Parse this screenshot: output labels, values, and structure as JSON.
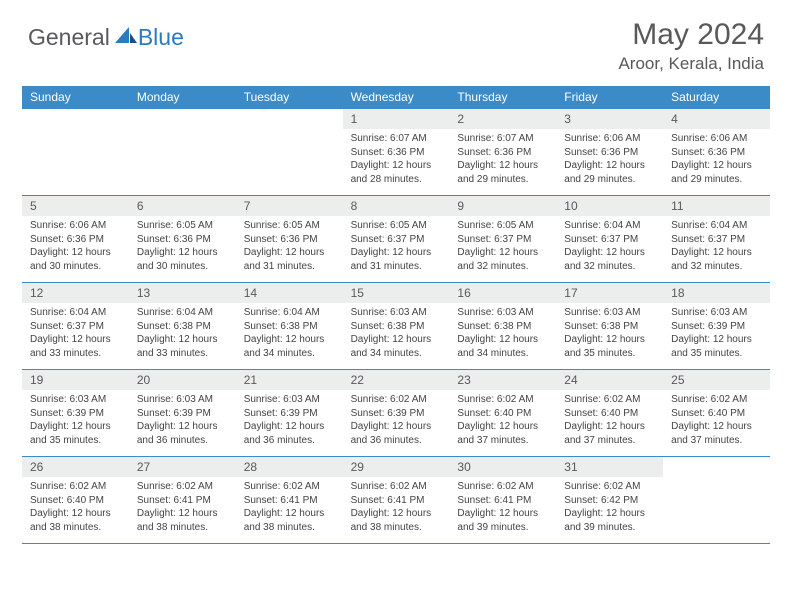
{
  "logo": {
    "general": "General",
    "blue": "Blue"
  },
  "title": "May 2024",
  "location": "Aroor, Kerala, India",
  "colors": {
    "headerBlue": "#3b8bc9",
    "logoBlue": "#2b7bbf",
    "gray": "#58595b",
    "cellGray": "#eceded"
  },
  "daysOfWeek": [
    "Sunday",
    "Monday",
    "Tuesday",
    "Wednesday",
    "Thursday",
    "Friday",
    "Saturday"
  ],
  "weeks": [
    [
      {
        "n": "",
        "sr": "",
        "ss": "",
        "dl": ""
      },
      {
        "n": "",
        "sr": "",
        "ss": "",
        "dl": ""
      },
      {
        "n": "",
        "sr": "",
        "ss": "",
        "dl": ""
      },
      {
        "n": "1",
        "sr": "6:07 AM",
        "ss": "6:36 PM",
        "dl": "12 hours and 28 minutes."
      },
      {
        "n": "2",
        "sr": "6:07 AM",
        "ss": "6:36 PM",
        "dl": "12 hours and 29 minutes."
      },
      {
        "n": "3",
        "sr": "6:06 AM",
        "ss": "6:36 PM",
        "dl": "12 hours and 29 minutes."
      },
      {
        "n": "4",
        "sr": "6:06 AM",
        "ss": "6:36 PM",
        "dl": "12 hours and 29 minutes."
      }
    ],
    [
      {
        "n": "5",
        "sr": "6:06 AM",
        "ss": "6:36 PM",
        "dl": "12 hours and 30 minutes."
      },
      {
        "n": "6",
        "sr": "6:05 AM",
        "ss": "6:36 PM",
        "dl": "12 hours and 30 minutes."
      },
      {
        "n": "7",
        "sr": "6:05 AM",
        "ss": "6:36 PM",
        "dl": "12 hours and 31 minutes."
      },
      {
        "n": "8",
        "sr": "6:05 AM",
        "ss": "6:37 PM",
        "dl": "12 hours and 31 minutes."
      },
      {
        "n": "9",
        "sr": "6:05 AM",
        "ss": "6:37 PM",
        "dl": "12 hours and 32 minutes."
      },
      {
        "n": "10",
        "sr": "6:04 AM",
        "ss": "6:37 PM",
        "dl": "12 hours and 32 minutes."
      },
      {
        "n": "11",
        "sr": "6:04 AM",
        "ss": "6:37 PM",
        "dl": "12 hours and 32 minutes."
      }
    ],
    [
      {
        "n": "12",
        "sr": "6:04 AM",
        "ss": "6:37 PM",
        "dl": "12 hours and 33 minutes."
      },
      {
        "n": "13",
        "sr": "6:04 AM",
        "ss": "6:38 PM",
        "dl": "12 hours and 33 minutes."
      },
      {
        "n": "14",
        "sr": "6:04 AM",
        "ss": "6:38 PM",
        "dl": "12 hours and 34 minutes."
      },
      {
        "n": "15",
        "sr": "6:03 AM",
        "ss": "6:38 PM",
        "dl": "12 hours and 34 minutes."
      },
      {
        "n": "16",
        "sr": "6:03 AM",
        "ss": "6:38 PM",
        "dl": "12 hours and 34 minutes."
      },
      {
        "n": "17",
        "sr": "6:03 AM",
        "ss": "6:38 PM",
        "dl": "12 hours and 35 minutes."
      },
      {
        "n": "18",
        "sr": "6:03 AM",
        "ss": "6:39 PM",
        "dl": "12 hours and 35 minutes."
      }
    ],
    [
      {
        "n": "19",
        "sr": "6:03 AM",
        "ss": "6:39 PM",
        "dl": "12 hours and 35 minutes."
      },
      {
        "n": "20",
        "sr": "6:03 AM",
        "ss": "6:39 PM",
        "dl": "12 hours and 36 minutes."
      },
      {
        "n": "21",
        "sr": "6:03 AM",
        "ss": "6:39 PM",
        "dl": "12 hours and 36 minutes."
      },
      {
        "n": "22",
        "sr": "6:02 AM",
        "ss": "6:39 PM",
        "dl": "12 hours and 36 minutes."
      },
      {
        "n": "23",
        "sr": "6:02 AM",
        "ss": "6:40 PM",
        "dl": "12 hours and 37 minutes."
      },
      {
        "n": "24",
        "sr": "6:02 AM",
        "ss": "6:40 PM",
        "dl": "12 hours and 37 minutes."
      },
      {
        "n": "25",
        "sr": "6:02 AM",
        "ss": "6:40 PM",
        "dl": "12 hours and 37 minutes."
      }
    ],
    [
      {
        "n": "26",
        "sr": "6:02 AM",
        "ss": "6:40 PM",
        "dl": "12 hours and 38 minutes."
      },
      {
        "n": "27",
        "sr": "6:02 AM",
        "ss": "6:41 PM",
        "dl": "12 hours and 38 minutes."
      },
      {
        "n": "28",
        "sr": "6:02 AM",
        "ss": "6:41 PM",
        "dl": "12 hours and 38 minutes."
      },
      {
        "n": "29",
        "sr": "6:02 AM",
        "ss": "6:41 PM",
        "dl": "12 hours and 38 minutes."
      },
      {
        "n": "30",
        "sr": "6:02 AM",
        "ss": "6:41 PM",
        "dl": "12 hours and 39 minutes."
      },
      {
        "n": "31",
        "sr": "6:02 AM",
        "ss": "6:42 PM",
        "dl": "12 hours and 39 minutes."
      },
      {
        "n": "",
        "sr": "",
        "ss": "",
        "dl": ""
      }
    ]
  ],
  "labels": {
    "sunrise": "Sunrise: ",
    "sunset": "Sunset: ",
    "daylight": "Daylight: "
  }
}
